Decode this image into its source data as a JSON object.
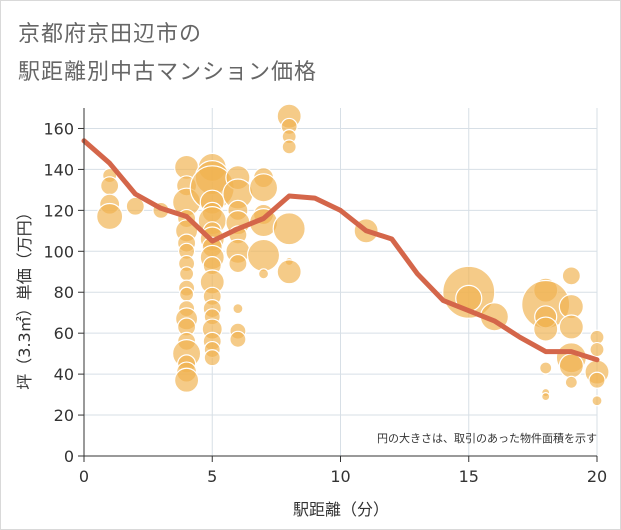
{
  "title_line1": "京都府京田辺市の",
  "title_line2": "駅距離別中古マンション価格",
  "chart_data": {
    "type": "scatter",
    "title": "京都府京田辺市の駅距離別中古マンション価格",
    "xlabel": "駅距離（分）",
    "ylabel": "坪（3.3㎡）単価（万円）",
    "note": "円の大きさは、取引のあった物件面積を示す",
    "xlim": [
      0,
      20
    ],
    "ylim": [
      0,
      170
    ],
    "xticks": [
      0,
      5,
      10,
      15,
      20
    ],
    "yticks": [
      0,
      20,
      40,
      60,
      80,
      100,
      120,
      140,
      160
    ],
    "grid": true,
    "colors": {
      "bubble": "#f0b24f",
      "line": "#d4664a",
      "grid": "#d7dfe6",
      "axis": "#333333"
    },
    "bubbles": [
      {
        "x": 1,
        "y": 137,
        "r": 7
      },
      {
        "x": 1,
        "y": 132,
        "r": 9
      },
      {
        "x": 1,
        "y": 123,
        "r": 10
      },
      {
        "x": 1,
        "y": 117,
        "r": 13
      },
      {
        "x": 2,
        "y": 122,
        "r": 9
      },
      {
        "x": 3,
        "y": 120,
        "r": 8
      },
      {
        "x": 4,
        "y": 141,
        "r": 12
      },
      {
        "x": 4,
        "y": 132,
        "r": 10
      },
      {
        "x": 4,
        "y": 124,
        "r": 14
      },
      {
        "x": 4,
        "y": 116,
        "r": 9
      },
      {
        "x": 4,
        "y": 110,
        "r": 11
      },
      {
        "x": 4,
        "y": 104,
        "r": 9
      },
      {
        "x": 4,
        "y": 100,
        "r": 8
      },
      {
        "x": 4,
        "y": 94,
        "r": 8
      },
      {
        "x": 4,
        "y": 89,
        "r": 7
      },
      {
        "x": 4,
        "y": 82,
        "r": 8
      },
      {
        "x": 4,
        "y": 79,
        "r": 7
      },
      {
        "x": 4,
        "y": 72,
        "r": 8
      },
      {
        "x": 4,
        "y": 67,
        "r": 11
      },
      {
        "x": 4,
        "y": 63,
        "r": 9
      },
      {
        "x": 4,
        "y": 56,
        "r": 9
      },
      {
        "x": 4,
        "y": 50,
        "r": 14
      },
      {
        "x": 4,
        "y": 45,
        "r": 9
      },
      {
        "x": 4,
        "y": 41,
        "r": 10
      },
      {
        "x": 4,
        "y": 37,
        "r": 12
      },
      {
        "x": 5,
        "y": 141,
        "r": 14
      },
      {
        "x": 5,
        "y": 136,
        "r": 17
      },
      {
        "x": 5,
        "y": 131,
        "r": 22
      },
      {
        "x": 5,
        "y": 124,
        "r": 12
      },
      {
        "x": 5,
        "y": 119,
        "r": 10
      },
      {
        "x": 5,
        "y": 115,
        "r": 14
      },
      {
        "x": 5,
        "y": 110,
        "r": 9
      },
      {
        "x": 5,
        "y": 106,
        "r": 12
      },
      {
        "x": 5,
        "y": 102,
        "r": 10
      },
      {
        "x": 5,
        "y": 97,
        "r": 12
      },
      {
        "x": 5,
        "y": 93,
        "r": 9
      },
      {
        "x": 5,
        "y": 85,
        "r": 12
      },
      {
        "x": 5,
        "y": 78,
        "r": 9
      },
      {
        "x": 5,
        "y": 72,
        "r": 9
      },
      {
        "x": 5,
        "y": 68,
        "r": 8
      },
      {
        "x": 5,
        "y": 62,
        "r": 10
      },
      {
        "x": 5,
        "y": 56,
        "r": 9
      },
      {
        "x": 5,
        "y": 52,
        "r": 8
      },
      {
        "x": 5,
        "y": 48,
        "r": 8
      },
      {
        "x": 6,
        "y": 136,
        "r": 12
      },
      {
        "x": 6,
        "y": 128,
        "r": 15
      },
      {
        "x": 6,
        "y": 120,
        "r": 10
      },
      {
        "x": 6,
        "y": 114,
        "r": 12
      },
      {
        "x": 6,
        "y": 108,
        "r": 9
      },
      {
        "x": 6,
        "y": 100,
        "r": 12
      },
      {
        "x": 6,
        "y": 94,
        "r": 9
      },
      {
        "x": 6,
        "y": 72,
        "r": 5
      },
      {
        "x": 6,
        "y": 61,
        "r": 8
      },
      {
        "x": 6,
        "y": 57,
        "r": 8
      },
      {
        "x": 7,
        "y": 136,
        "r": 10
      },
      {
        "x": 7,
        "y": 131,
        "r": 14
      },
      {
        "x": 7,
        "y": 118,
        "r": 10
      },
      {
        "x": 7,
        "y": 114,
        "r": 14
      },
      {
        "x": 7,
        "y": 98,
        "r": 16
      },
      {
        "x": 7,
        "y": 89,
        "r": 5
      },
      {
        "x": 8,
        "y": 166,
        "r": 12
      },
      {
        "x": 8,
        "y": 161,
        "r": 8
      },
      {
        "x": 8,
        "y": 156,
        "r": 7
      },
      {
        "x": 8,
        "y": 151,
        "r": 7
      },
      {
        "x": 8,
        "y": 111,
        "r": 16
      },
      {
        "x": 8,
        "y": 95,
        "r": 4
      },
      {
        "x": 8,
        "y": 90,
        "r": 12
      },
      {
        "x": 11,
        "y": 110,
        "r": 12
      },
      {
        "x": 15,
        "y": 80,
        "r": 26
      },
      {
        "x": 15,
        "y": 77,
        "r": 13
      },
      {
        "x": 16,
        "y": 68,
        "r": 14
      },
      {
        "x": 18,
        "y": 81,
        "r": 12
      },
      {
        "x": 18,
        "y": 74,
        "r": 24
      },
      {
        "x": 18,
        "y": 68,
        "r": 11
      },
      {
        "x": 18,
        "y": 62,
        "r": 12
      },
      {
        "x": 18,
        "y": 43,
        "r": 6
      },
      {
        "x": 18,
        "y": 31,
        "r": 4
      },
      {
        "x": 18,
        "y": 29,
        "r": 4
      },
      {
        "x": 19,
        "y": 88,
        "r": 9
      },
      {
        "x": 19,
        "y": 73,
        "r": 12
      },
      {
        "x": 19,
        "y": 63,
        "r": 12
      },
      {
        "x": 19,
        "y": 48,
        "r": 15
      },
      {
        "x": 19,
        "y": 44,
        "r": 12
      },
      {
        "x": 19,
        "y": 36,
        "r": 6
      },
      {
        "x": 20,
        "y": 58,
        "r": 7
      },
      {
        "x": 20,
        "y": 52,
        "r": 7
      },
      {
        "x": 20,
        "y": 41,
        "r": 12
      },
      {
        "x": 20,
        "y": 37,
        "r": 8
      },
      {
        "x": 20,
        "y": 27,
        "r": 5
      }
    ],
    "series": [
      {
        "x": [
          0,
          1,
          2,
          3,
          4,
          5,
          6,
          7,
          8,
          9,
          10,
          11,
          12,
          13,
          14,
          15,
          16,
          17,
          18,
          19,
          20
        ],
        "values": [
          154,
          143,
          128,
          121,
          117,
          105,
          111,
          116,
          127,
          126,
          120,
          110,
          106,
          89,
          76,
          71,
          66,
          58,
          51,
          51,
          47
        ]
      }
    ]
  }
}
